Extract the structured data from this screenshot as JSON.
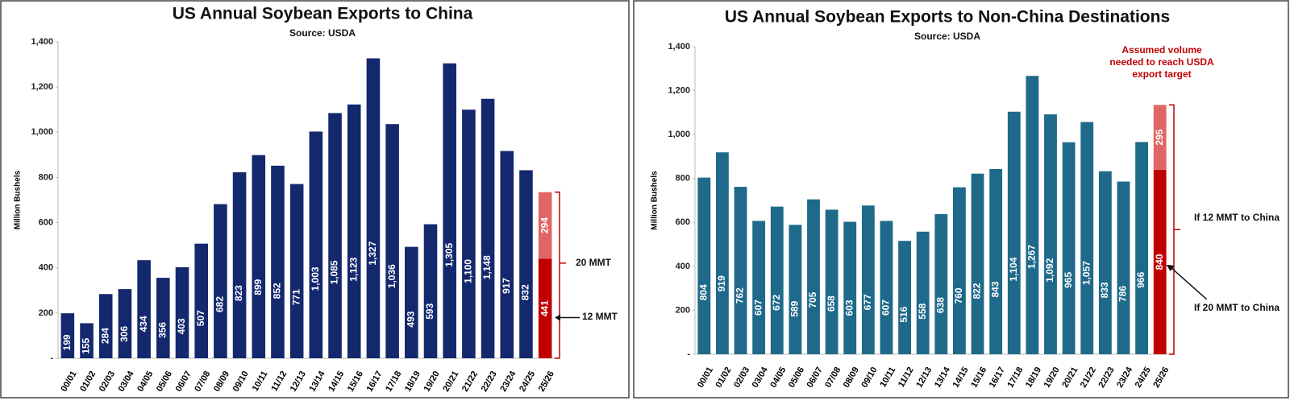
{
  "chart_data": [
    {
      "type": "bar",
      "title": "US Annual Soybean Exports to China",
      "subtitle": "Source: USDA",
      "ylabel": "Million Bushels",
      "categories": [
        "00/01",
        "01/02",
        "02/03",
        "03/04",
        "04/05",
        "05/06",
        "06/07",
        "07/08",
        "08/09",
        "09/10",
        "10/11",
        "11/12",
        "12/13",
        "13/14",
        "14/15",
        "15/16",
        "16/17",
        "17/18",
        "18/19",
        "19/20",
        "20/21",
        "21/22",
        "22/23",
        "23/24",
        "24/25",
        "25/26"
      ],
      "series": [
        {
          "color": "#14286e",
          "values": [
            199,
            155,
            284,
            306,
            434,
            356,
            403,
            507,
            682,
            823,
            899,
            852,
            771,
            1003,
            1085,
            1123,
            1327,
            1036,
            493,
            593,
            1305,
            1100,
            1148,
            917,
            832,
            null
          ],
          "value_labels": [
            "199",
            "155",
            "284",
            "306",
            "434",
            "356",
            "403",
            "507",
            "682",
            "823",
            "899",
            "852",
            "771",
            "1,003",
            "1,085",
            "1,123",
            "1,327",
            "1,036",
            "493",
            "593",
            "1,305",
            "1,100",
            "1,148",
            "917",
            "832",
            null
          ]
        },
        {
          "color": "#c00000",
          "values": [
            null,
            null,
            null,
            null,
            null,
            null,
            null,
            null,
            null,
            null,
            null,
            null,
            null,
            null,
            null,
            null,
            null,
            null,
            null,
            null,
            null,
            null,
            null,
            null,
            null,
            441
          ]
        },
        {
          "color": "#e06666",
          "values": [
            null,
            null,
            null,
            null,
            null,
            null,
            null,
            null,
            null,
            null,
            null,
            null,
            null,
            null,
            null,
            null,
            null,
            null,
            null,
            null,
            null,
            null,
            null,
            null,
            null,
            294
          ]
        }
      ],
      "ylim": [
        0,
        1400
      ],
      "yticks": [
        {
          "value": 0,
          "label": "-"
        },
        200,
        400,
        600,
        800,
        {
          "value": 1000,
          "label": "1,000"
        },
        {
          "value": 1200,
          "label": "1,200"
        },
        {
          "value": 1400,
          "label": "1,400"
        }
      ],
      "annotations": [
        "20 MMT",
        "12 MMT"
      ]
    },
    {
      "type": "bar",
      "title": "US Annual Soybean Exports to Non-China Destinations",
      "subtitle": "Source: USDA",
      "ylabel": "Million Bushels",
      "categories": [
        "00/01",
        "01/02",
        "02/03",
        "03/04",
        "04/05",
        "05/06",
        "06/07",
        "07/08",
        "08/09",
        "09/10",
        "10/11",
        "11/12",
        "12/13",
        "13/14",
        "14/15",
        "15/16",
        "16/17",
        "17/18",
        "18/19",
        "19/20",
        "20/21",
        "21/22",
        "22/23",
        "23/24",
        "24/25",
        "25/26"
      ],
      "series": [
        {
          "color": "#1f6a8a",
          "values": [
            804,
            919,
            762,
            607,
            672,
            589,
            705,
            658,
            603,
            677,
            607,
            516,
            558,
            638,
            760,
            822,
            843,
            1104,
            1267,
            1092,
            965,
            1057,
            833,
            786,
            966,
            null
          ],
          "value_labels": [
            "804",
            "919",
            "762",
            "607",
            "672",
            "589",
            "705",
            "658",
            "603",
            "677",
            "607",
            "516",
            "558",
            "638",
            "760",
            "822",
            "843",
            "1,104",
            "1,267",
            "1,092",
            "965",
            "1,057",
            "833",
            "786",
            "966",
            null
          ]
        },
        {
          "color": "#c00000",
          "values": [
            null,
            null,
            null,
            null,
            null,
            null,
            null,
            null,
            null,
            null,
            null,
            null,
            null,
            null,
            null,
            null,
            null,
            null,
            null,
            null,
            null,
            null,
            null,
            null,
            null,
            840
          ],
          "value_labels": [
            null,
            null,
            null,
            null,
            null,
            null,
            null,
            null,
            null,
            null,
            null,
            null,
            null,
            null,
            null,
            null,
            null,
            null,
            null,
            null,
            null,
            null,
            null,
            null,
            null,
            "840"
          ]
        },
        {
          "color": "#e06666",
          "values": [
            null,
            null,
            null,
            null,
            null,
            null,
            null,
            null,
            null,
            null,
            null,
            null,
            null,
            null,
            null,
            null,
            null,
            null,
            null,
            null,
            null,
            null,
            null,
            null,
            null,
            295
          ]
        }
      ],
      "ylim": [
        0,
        1400
      ],
      "yticks": [
        {
          "value": 0,
          "label": "-"
        },
        200,
        400,
        600,
        800,
        {
          "value": 1000,
          "label": "1,000"
        },
        {
          "value": 1200,
          "label": "1,200"
        },
        {
          "value": 1400,
          "label": "1,400"
        }
      ],
      "annotations": [
        "Assumed volume needed to reach USDA export target",
        "If 12 MMT to China",
        "If 20 MMT to China"
      ]
    }
  ]
}
